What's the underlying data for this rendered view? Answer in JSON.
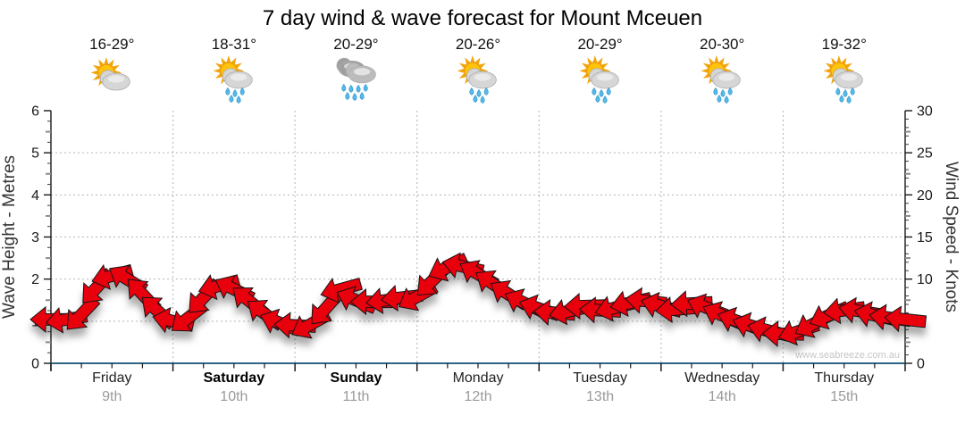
{
  "page": {
    "background": "#ffffff"
  },
  "chart_data": {
    "type": "line",
    "title": "7 day wind & wave forecast for Mount Mceuen",
    "days": [
      {
        "name": "Friday",
        "date": "9th",
        "temp": "16-29°",
        "icon": "sun-cloud",
        "bold": false
      },
      {
        "name": "Saturday",
        "date": "10th",
        "temp": "18-31°",
        "icon": "sun-cloud-rain",
        "bold": true
      },
      {
        "name": "Sunday",
        "date": "11th",
        "temp": "20-29°",
        "icon": "rain-cloud",
        "bold": true
      },
      {
        "name": "Monday",
        "date": "12th",
        "temp": "20-26°",
        "icon": "sun-cloud-rain",
        "bold": false
      },
      {
        "name": "Tuesday",
        "date": "13th",
        "temp": "20-29°",
        "icon": "sun-cloud-rain",
        "bold": false
      },
      {
        "name": "Wednesday",
        "date": "14th",
        "temp": "20-30°",
        "icon": "sun-cloud-rain",
        "bold": false
      },
      {
        "name": "Thursday",
        "date": "15th",
        "temp": "19-32°",
        "icon": "sun-cloud-rain",
        "bold": false
      }
    ],
    "left_axis": {
      "label": "Wave Height - Metres",
      "min": 0,
      "max": 6,
      "major_ticks": [
        0,
        1,
        2,
        3,
        4,
        5,
        6
      ]
    },
    "right_axis": {
      "label": "Wind Speed - Knots",
      "min": 0,
      "max": 30,
      "major_ticks": [
        0,
        5,
        10,
        15,
        20,
        25,
        30
      ]
    },
    "series": [
      {
        "name": "wind-speed",
        "unit": "knots",
        "points_per_day": 8,
        "values": [
          5.2,
          5.2,
          5.8,
          9.0,
          10.4,
          10.0,
          8.2,
          6.2,
          5.0,
          5.4,
          7.8,
          9.2,
          8.8,
          7.4,
          5.9,
          4.8,
          4.5,
          4.6,
          6.5,
          8.8,
          7.5,
          7.3,
          7.5,
          7.8,
          7.9,
          9.8,
          11.4,
          11.5,
          10.6,
          9.4,
          8.2,
          7.2,
          6.5,
          6.0,
          6.2,
          6.8,
          6.3,
          6.6,
          7.2,
          7.4,
          6.8,
          6.4,
          7.1,
          6.6,
          5.7,
          5.0,
          4.4,
          3.9,
          3.5,
          3.8,
          4.7,
          5.7,
          6.3,
          6.2,
          5.7,
          5.4,
          5.2
        ]
      }
    ],
    "watermark": "www.seabreeze.com.au",
    "colors": {
      "arrow_fill": "#e8000d",
      "arrow_stroke": "#151515",
      "x_axis_line": "#2e6486",
      "axis_line": "#1a1a1a",
      "gridline": "#b5b5b5",
      "tick_label": "#1a1a1a",
      "axis_title": "#333333",
      "date_label": "#9a9a9a",
      "watermark": "#c6c6c6",
      "sun": "#ffc30b",
      "sun_ray": "#f2a50c",
      "sun_edge": "#e8960a",
      "cloud_light": "#d6d6d6",
      "cloud_edge": "#aeaeae",
      "cloud_dark": "#9f9f9f",
      "cloud_mid": "#bcbcbc",
      "rain_drop": "#55b9e9",
      "rain_edge": "#2d93c8"
    }
  }
}
